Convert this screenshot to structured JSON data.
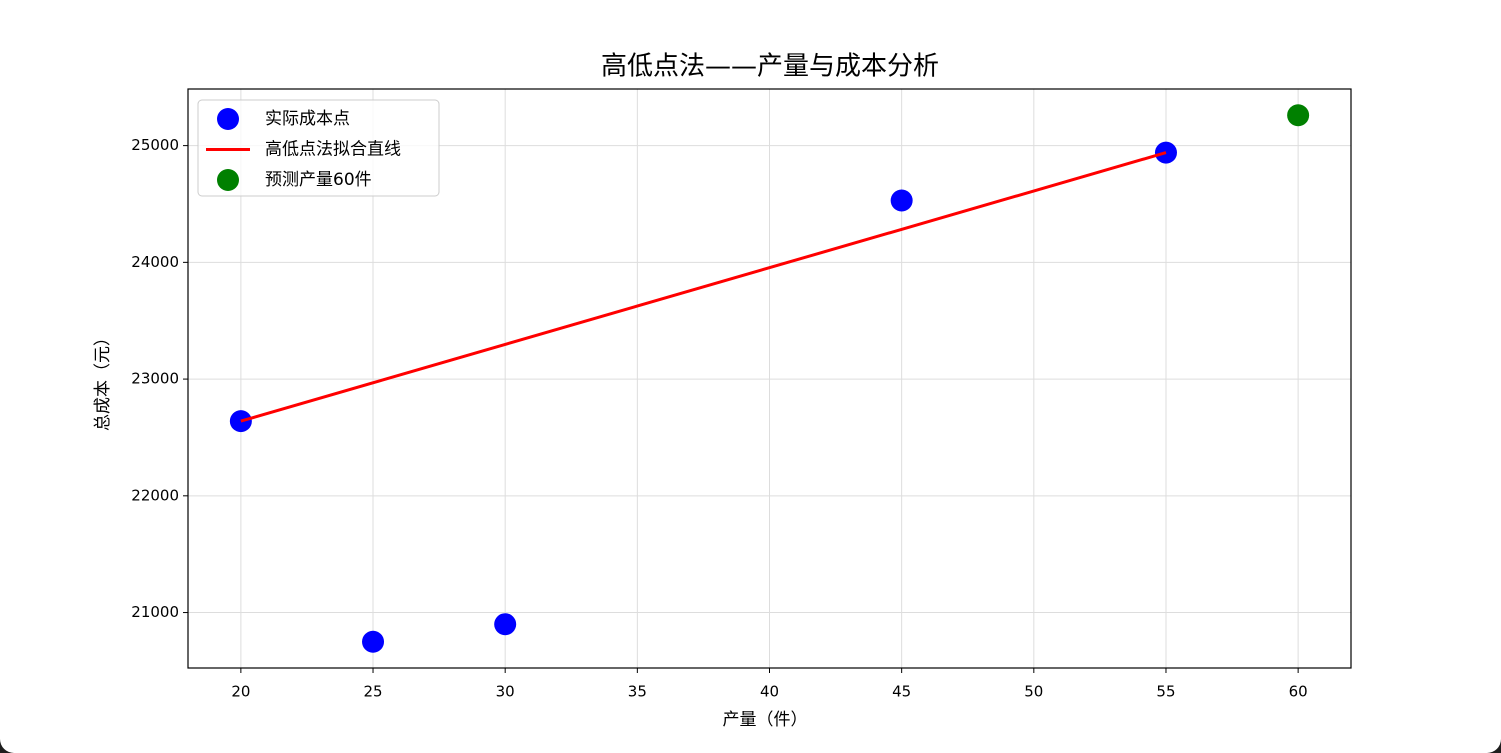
{
  "chart_data": {
    "type": "scatter",
    "title": "高低点法——产量与成本分析",
    "x_label": "产量（件）",
    "y_label": "总成本（元）",
    "series": [
      {
        "name": "实际成本点",
        "type": "scatter",
        "color": "#0000ff",
        "x": [
          20,
          25,
          30,
          45,
          55
        ],
        "values": [
          22640,
          20750,
          20900,
          24530,
          24940
        ]
      },
      {
        "name": "高低点法拟合直线",
        "type": "line",
        "color": "#ff0000",
        "x": [
          20,
          55
        ],
        "values": [
          22640,
          24940
        ]
      },
      {
        "name": "预测产量60件",
        "type": "scatter",
        "color": "#008000",
        "x": [
          60
        ],
        "values": [
          25260
        ]
      }
    ],
    "xlim": [
      18,
      62
    ],
    "xticks": [
      20,
      25,
      30,
      35,
      40,
      45,
      50,
      55,
      60
    ],
    "ylim": [
      20525,
      25485
    ],
    "yticks": [
      21000,
      22000,
      23000,
      24000,
      25000
    ],
    "grid": true,
    "legend": "upper left"
  }
}
